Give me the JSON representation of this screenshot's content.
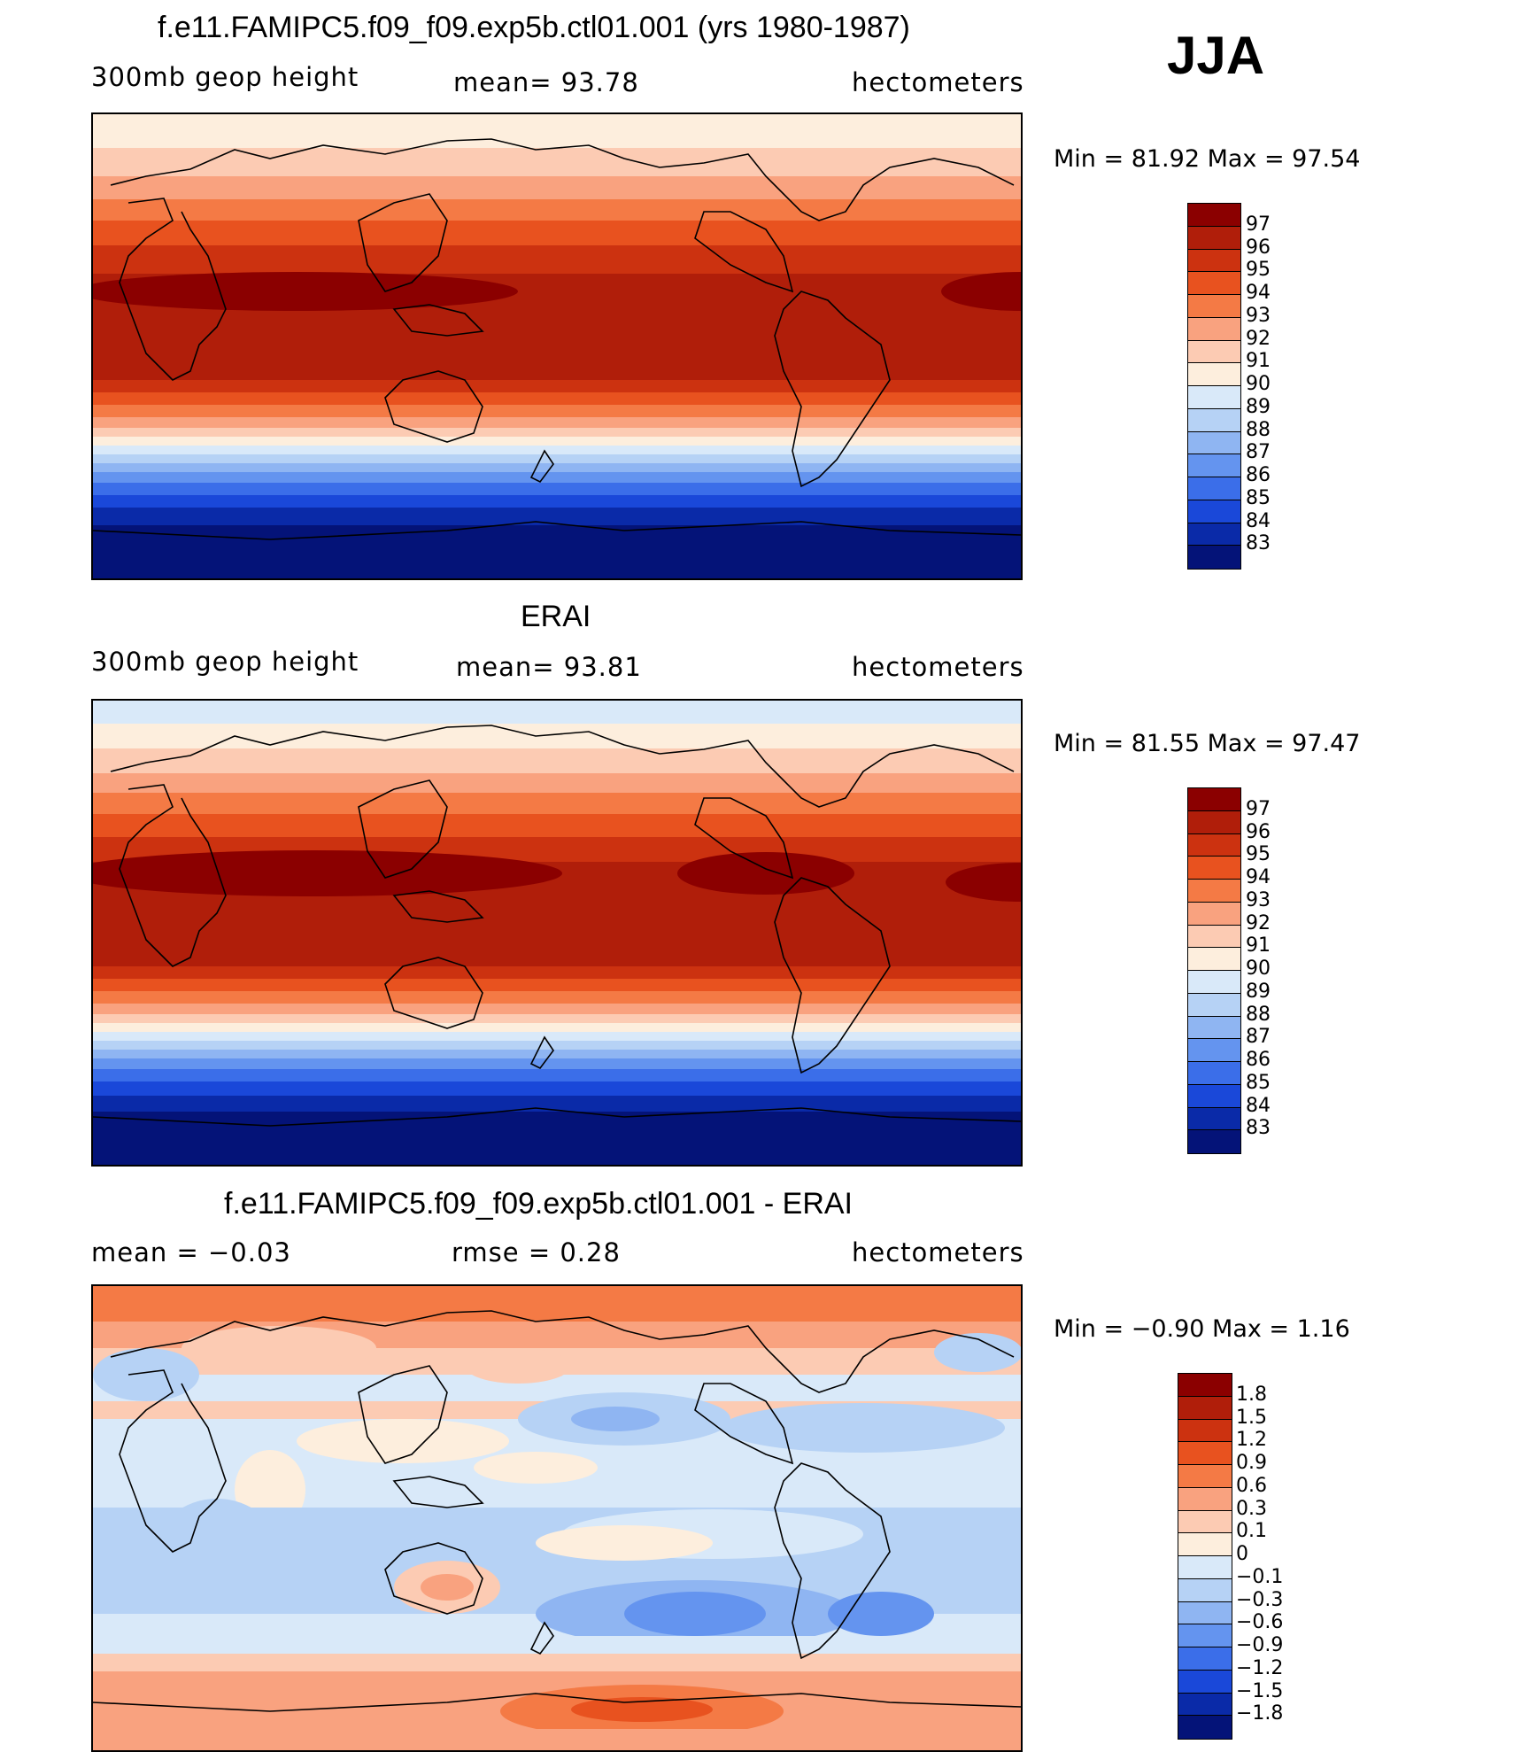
{
  "season": "JJA",
  "panels": [
    {
      "title": "f.e11.FAMIPC5.f09_f09.exp5b.ctl01.001 (yrs 1980-1987)",
      "left": "300mb  geop  height",
      "center": "mean=   93.78",
      "right": "hectometers",
      "minmax": "Min  =    81.92  Max  =    97.54",
      "legend": {
        "labels": [
          "97",
          "96",
          "95",
          "94",
          "93",
          "92",
          "91",
          "90",
          "89",
          "88",
          "87",
          "86",
          "85",
          "84",
          "83"
        ],
        "colors": [
          "#8b0000",
          "#b01e0a",
          "#cc3210",
          "#e8521f",
          "#f47a45",
          "#f9a27f",
          "#fccbb3",
          "#fdeedd",
          "#d9e9f9",
          "#b6d2f5",
          "#8fb5f2",
          "#6494ef",
          "#3b6ee9",
          "#1a48d9",
          "#0a2aa8",
          "#041378"
        ]
      }
    },
    {
      "title": "ERAI",
      "left": "300mb  geop  height",
      "center": "mean=   93.81",
      "right": "hectometers",
      "minmax": "Min  =    81.55  Max  =    97.47",
      "legend": {
        "labels": [
          "97",
          "96",
          "95",
          "94",
          "93",
          "92",
          "91",
          "90",
          "89",
          "88",
          "87",
          "86",
          "85",
          "84",
          "83"
        ],
        "colors": [
          "#8b0000",
          "#b01e0a",
          "#cc3210",
          "#e8521f",
          "#f47a45",
          "#f9a27f",
          "#fccbb3",
          "#fdeedd",
          "#d9e9f9",
          "#b6d2f5",
          "#8fb5f2",
          "#6494ef",
          "#3b6ee9",
          "#1a48d9",
          "#0a2aa8",
          "#041378"
        ]
      }
    },
    {
      "title": "f.e11.FAMIPC5.f09_f09.exp5b.ctl01.001 - ERAI",
      "left": "mean  =    −0.03",
      "center": "rmse  =     0.28",
      "right": "hectometers",
      "minmax": "Min  =    −0.90  Max  =      1.16",
      "legend": {
        "labels": [
          "1.8",
          "1.5",
          "1.2",
          "0.9",
          "0.6",
          "0.3",
          "0.1",
          "0",
          "−0.1",
          "−0.3",
          "−0.6",
          "−0.9",
          "−1.2",
          "−1.5",
          "−1.8"
        ],
        "colors": [
          "#8b0000",
          "#b01e0a",
          "#cc3210",
          "#e8521f",
          "#f47a45",
          "#f9a27f",
          "#fccbb3",
          "#fdeedd",
          "#d9e9f9",
          "#b6d2f5",
          "#8fb5f2",
          "#6494ef",
          "#3b6ee9",
          "#1a48d9",
          "#0a2aa8",
          "#041378"
        ]
      }
    }
  ]
}
